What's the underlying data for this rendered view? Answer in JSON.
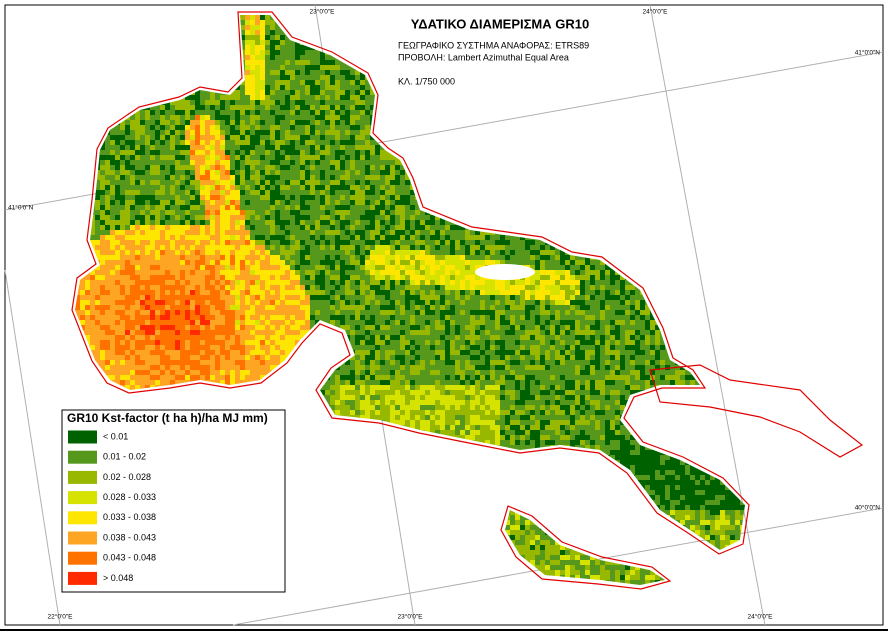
{
  "title": "ΥΔΑΤΙΚΟ ΔΙΑΜΕΡΙΣΜΑ GR10",
  "reference_system": "ΓΕΩΓΡΑΦΙΚΟ ΣΥΣΤΗΜΑ ΑΝΑΦΟΡΑΣ: ETRS89",
  "projection": "ΠΡΟΒΟΛΗ: Lambert Azimuthal Equal Area",
  "scale": "ΚΛ. 1/750 000",
  "legend": {
    "title": "GR10 Kst-factor (t ha h)/ha MJ mm)",
    "items": [
      {
        "label": "< 0.01",
        "color": "#006100"
      },
      {
        "label": "0.01 - 0.02",
        "color": "#55981c"
      },
      {
        "label": "0.02 - 0.028",
        "color": "#98b800"
      },
      {
        "label": "0.028 - 0.033",
        "color": "#d6e200"
      },
      {
        "label": "0.033 - 0.038",
        "color": "#ffe600"
      },
      {
        "label": "0.038 - 0.043",
        "color": "#ffa524"
      },
      {
        "label": "0.043 - 0.048",
        "color": "#ff7200"
      },
      {
        "label": "> 0.048",
        "color": "#ff2a00"
      }
    ]
  },
  "graticule_labels": [
    "23°0'0\"E",
    "24°0'0\"E",
    "41°0'0\"N",
    "41°0'0\"N",
    "40°0'0\"N",
    "22°0'0\"E",
    "23°0'0\"E",
    "24°0'0\"E"
  ]
}
